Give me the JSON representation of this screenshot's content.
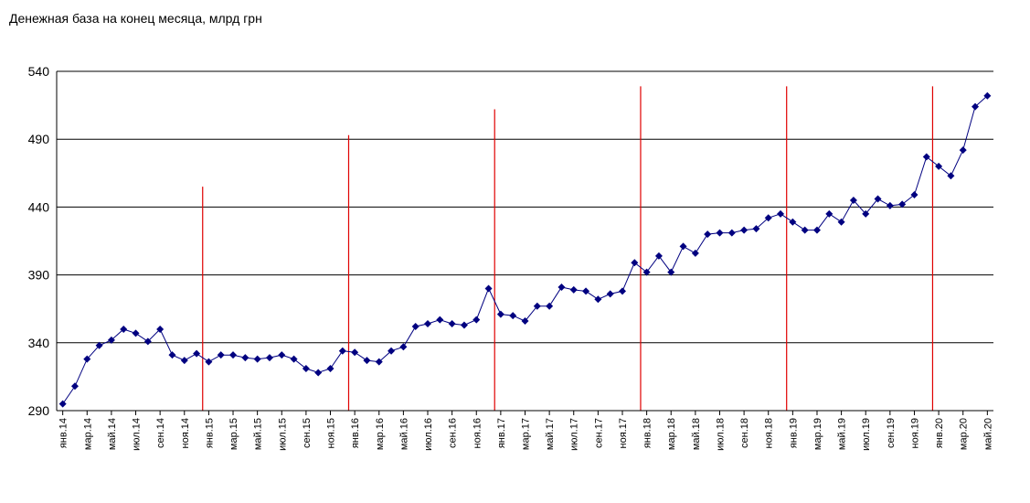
{
  "chart_data": {
    "type": "line",
    "title": "Денежная база на конец месяца, млрд грн",
    "xlabel": "",
    "ylabel": "",
    "ylim": [
      290,
      540
    ],
    "yticks": [
      290,
      340,
      390,
      440,
      490,
      540
    ],
    "grid": true,
    "legend": "none",
    "colors": {
      "line": "#000080",
      "marker": "#000080",
      "year_markers": "#e00000",
      "grid": "#000000"
    },
    "x": [
      "янв.14",
      "фев.14",
      "мар.14",
      "апр.14",
      "май.14",
      "июн.14",
      "июл.14",
      "авг.14",
      "сен.14",
      "окт.14",
      "ноя.14",
      "дек.14",
      "янв.15",
      "фев.15",
      "мар.15",
      "апр.15",
      "май.15",
      "июн.15",
      "июл.15",
      "авг.15",
      "сен.15",
      "окт.15",
      "ноя.15",
      "дек.15",
      "янв.16",
      "фев.16",
      "мар.16",
      "апр.16",
      "май.16",
      "июн.16",
      "июл.16",
      "авг.16",
      "сен.16",
      "окт.16",
      "ноя.16",
      "дек.16",
      "янв.17",
      "фев.17",
      "мар.17",
      "апр.17",
      "май.17",
      "июн.17",
      "июл.17",
      "авг.17",
      "сен.17",
      "окт.17",
      "ноя.17",
      "дек.17",
      "янв.18",
      "фев.18",
      "мар.18",
      "апр.18",
      "май.18",
      "июн.18",
      "июл.18",
      "авг.18",
      "сен.18",
      "окт.18",
      "ноя.18",
      "дек.18",
      "янв.19",
      "фев.19",
      "мар.19",
      "апр.19",
      "май.19",
      "июн.19",
      "июл.19",
      "авг.19",
      "сен.19",
      "окт.19",
      "ноя.19",
      "дек.19",
      "янв.20",
      "фев.20",
      "мар.20",
      "апр.20",
      "май.20"
    ],
    "x_tick_labels": [
      "янв.14",
      "мар.14",
      "май.14",
      "июл.14",
      "сен.14",
      "ноя.14",
      "янв.15",
      "мар.15",
      "май.15",
      "июл.15",
      "сен.15",
      "ноя.15",
      "янв.16",
      "мар.16",
      "май.16",
      "июл.16",
      "сен.16",
      "ноя.16",
      "янв.17",
      "мар.17",
      "май.17",
      "июл.17",
      "сен.17",
      "ноя.17",
      "янв.18",
      "мар.18",
      "май.18",
      "июл.18",
      "сен.18",
      "ноя.18",
      "янв.19",
      "мар.19",
      "май.19",
      "июл.19",
      "сен.19",
      "ноя.19",
      "янв.20",
      "мар.20",
      "май.20"
    ],
    "series": [
      {
        "values": [
          295,
          308,
          328,
          338,
          342,
          350,
          347,
          341,
          350,
          331,
          327,
          332,
          326,
          331,
          331,
          329,
          328,
          329,
          331,
          328,
          321,
          318,
          321,
          334,
          333,
          327,
          326,
          334,
          337,
          352,
          354,
          357,
          354,
          353,
          357,
          380,
          361,
          360,
          356,
          367,
          367,
          381,
          379,
          378,
          372,
          376,
          378,
          399,
          392,
          404,
          392,
          411,
          406,
          420,
          421,
          421,
          423,
          424,
          432,
          435,
          429,
          423,
          423,
          435,
          429,
          445,
          435,
          446,
          441,
          442,
          449,
          477,
          470,
          463,
          482,
          514,
          522
        ]
      }
    ],
    "year_markers": [
      {
        "after": "дек.14",
        "top": 455
      },
      {
        "after": "дек.15",
        "top": 493
      },
      {
        "after": "дек.16",
        "top": 512
      },
      {
        "after": "дек.17",
        "top": 529
      },
      {
        "after": "дек.18",
        "top": 529
      },
      {
        "after": "дек.19",
        "top": 529
      }
    ]
  }
}
